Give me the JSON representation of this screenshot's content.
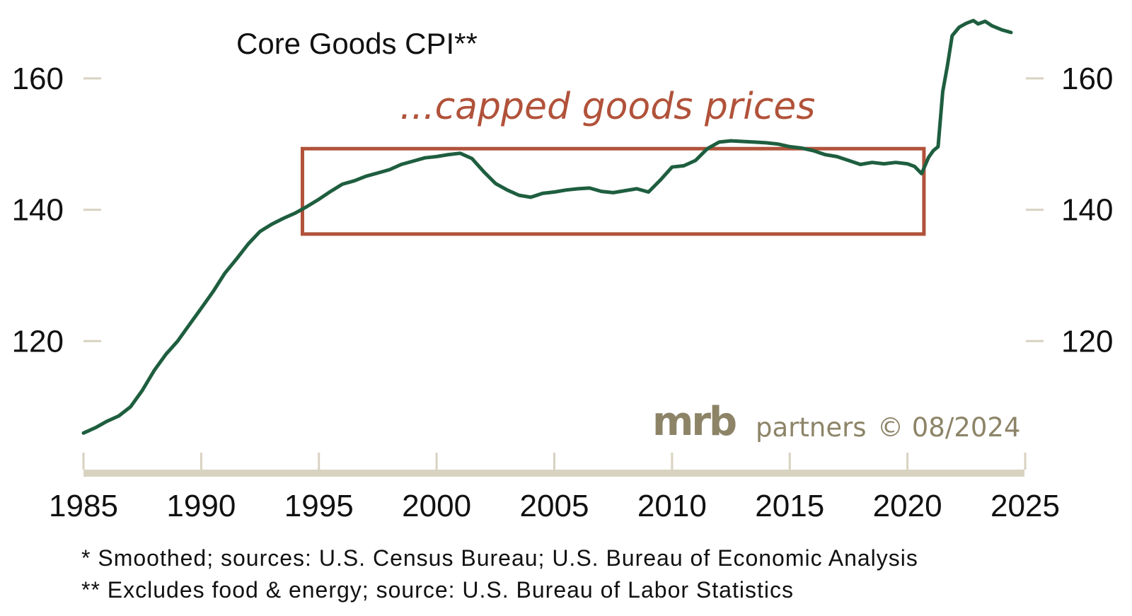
{
  "chart_data": {
    "type": "line",
    "title": "Core Goods CPI**",
    "annotation": "...capped goods prices",
    "xlabel": "",
    "ylabel": "",
    "xlim": [
      1985,
      2025
    ],
    "ylim": [
      100,
      170
    ],
    "x_ticks": [
      1985,
      1990,
      1995,
      2000,
      2005,
      2010,
      2015,
      2020,
      2025
    ],
    "y_ticks": [
      120,
      140,
      160
    ],
    "y_axis_sides": "left and right",
    "grid": false,
    "legend": "none",
    "highlight_box": {
      "x_range": [
        1994.3,
        2020.7
      ],
      "y_range": [
        136.3,
        149.3
      ]
    },
    "series": [
      {
        "color": "#1e5e3f",
        "x": [
          1985.0,
          1985.5,
          1986.0,
          1986.5,
          1987.0,
          1987.5,
          1988.0,
          1988.5,
          1989.0,
          1989.5,
          1990.0,
          1990.5,
          1991.0,
          1991.5,
          1992.0,
          1992.5,
          1993.0,
          1993.5,
          1994.0,
          1994.5,
          1995.0,
          1995.5,
          1996.0,
          1996.5,
          1997.0,
          1997.5,
          1998.0,
          1998.5,
          1999.0,
          1999.5,
          2000.0,
          2000.5,
          2001.0,
          2001.5,
          2002.0,
          2002.5,
          2003.0,
          2003.5,
          2004.0,
          2004.5,
          2005.0,
          2005.5,
          2006.0,
          2006.5,
          2007.0,
          2007.5,
          2008.0,
          2008.5,
          2009.0,
          2009.5,
          2010.0,
          2010.5,
          2011.0,
          2011.5,
          2012.0,
          2012.5,
          2013.0,
          2013.5,
          2014.0,
          2014.5,
          2015.0,
          2015.5,
          2016.0,
          2016.5,
          2017.0,
          2017.5,
          2018.0,
          2018.5,
          2019.0,
          2019.5,
          2020.0,
          2020.3,
          2020.6,
          2020.9,
          2021.1,
          2021.3,
          2021.5,
          2021.7,
          2021.9,
          2022.2,
          2022.5,
          2022.8,
          2023.0,
          2023.3,
          2023.6,
          2024.0,
          2024.4
        ],
        "values": [
          106.0,
          106.8,
          107.8,
          108.6,
          110.0,
          112.5,
          115.5,
          118.0,
          120.0,
          122.5,
          125.0,
          127.5,
          130.3,
          132.5,
          134.8,
          136.7,
          137.8,
          138.7,
          139.5,
          140.5,
          141.6,
          142.8,
          143.9,
          144.4,
          145.1,
          145.6,
          146.1,
          146.9,
          147.4,
          147.9,
          148.1,
          148.4,
          148.6,
          147.8,
          145.8,
          144.0,
          143.0,
          142.2,
          141.9,
          142.5,
          142.7,
          143.0,
          143.2,
          143.3,
          142.8,
          142.6,
          142.9,
          143.2,
          142.7,
          144.5,
          146.5,
          146.7,
          147.5,
          149.3,
          150.3,
          150.5,
          150.4,
          150.3,
          150.2,
          150.0,
          149.6,
          149.4,
          149.0,
          148.4,
          148.1,
          147.5,
          146.9,
          147.2,
          147.0,
          147.2,
          147.0,
          146.6,
          145.5,
          148.0,
          149.0,
          149.6,
          158.0,
          162.0,
          166.5,
          167.8,
          168.4,
          168.8,
          168.3,
          168.7,
          168.0,
          167.4,
          167.0
        ]
      }
    ]
  },
  "footnotes": [
    "*   Smoothed; sources: U.S. Census Bureau; U.S. Bureau of Economic Analysis",
    "** Excludes food & energy; source: U.S. Bureau of Labor Statistics"
  ],
  "brand": {
    "logo_text": "mrb",
    "partner_text": "partners",
    "copyright": "© 08/2024"
  },
  "colors": {
    "line": "#1e5e3f",
    "box": "#b1523a",
    "annotation": "#b1523a",
    "axis": "#d8d2c1",
    "brand": "#8d8468"
  }
}
